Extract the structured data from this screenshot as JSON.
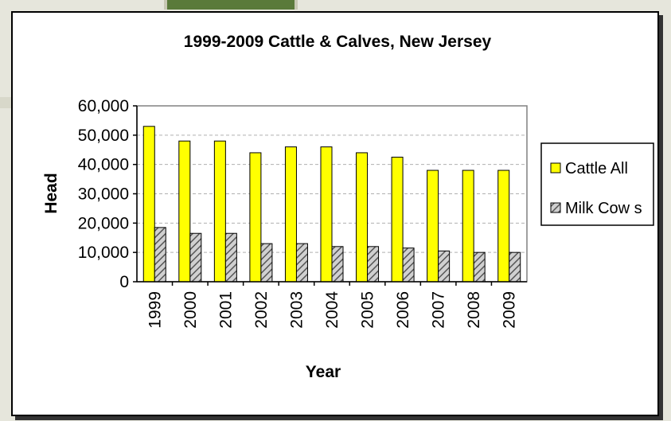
{
  "chart_data": {
    "type": "bar",
    "title": "1999-2009 Cattle & Calves, New Jersey",
    "xlabel": "Year",
    "ylabel": "Head",
    "ylim": [
      0,
      60000
    ],
    "yticks": [
      "0",
      "10,000",
      "20,000",
      "30,000",
      "40,000",
      "50,000",
      "60,000"
    ],
    "categories": [
      "1999",
      "2000",
      "2001",
      "2002",
      "2003",
      "2004",
      "2005",
      "2006",
      "2007",
      "2008",
      "2009"
    ],
    "series": [
      {
        "name": "Cattle All",
        "color": "#ffff00",
        "values": [
          53000,
          48000,
          48000,
          44000,
          46000,
          46000,
          44000,
          42500,
          38000,
          38000,
          38000
        ]
      },
      {
        "name": "Milk Cow s",
        "color": "#999999",
        "pattern": "diagonal-hatch",
        "values": [
          18500,
          16500,
          16500,
          13000,
          13000,
          12000,
          12000,
          11500,
          10500,
          10000,
          10000
        ]
      }
    ],
    "grid": true,
    "legend": "right"
  }
}
